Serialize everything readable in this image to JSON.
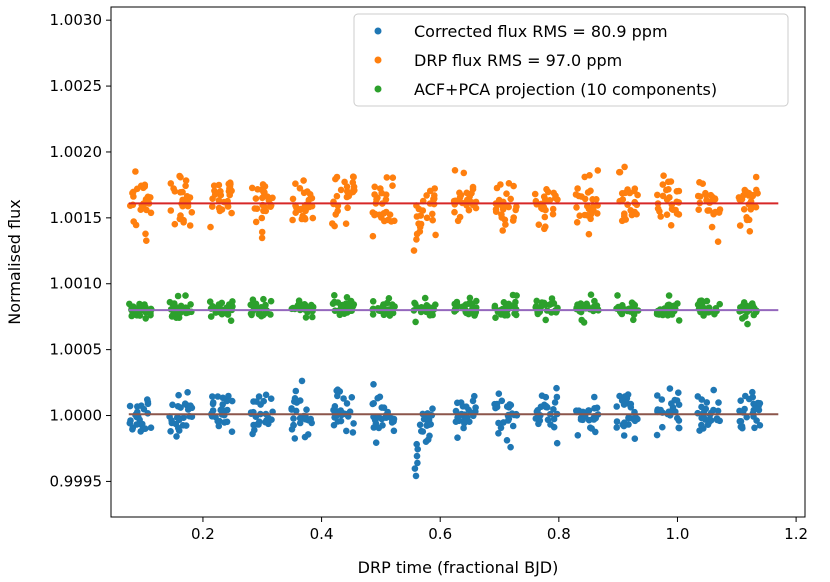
{
  "chart_data": {
    "type": "scatter",
    "title": "",
    "xlabel": "DRP time (fractional BJD)",
    "ylabel": "Normalised flux",
    "xlim": [
      0.045,
      1.215
    ],
    "ylim": [
      0.99923,
      1.0031
    ],
    "xticks": [
      0.2,
      0.4,
      0.6,
      0.8,
      1.0,
      1.2
    ],
    "xtick_labels": [
      "0.2",
      "0.4",
      "0.6",
      "0.8",
      "1.0",
      "1.2"
    ],
    "yticks": [
      0.9995,
      1.0,
      1.0005,
      1.001,
      1.0015,
      1.002,
      1.0025,
      1.003
    ],
    "ytick_labels": [
      "0.9995",
      "1.0000",
      "1.0005",
      "1.0010",
      "1.0015",
      "1.0020",
      "1.0025",
      "1.0030"
    ],
    "grid": false,
    "legend_position": "top-right",
    "time_range": [
      0.075,
      1.17
    ],
    "orbit_period": 0.0685,
    "visit_window": 0.038,
    "series": [
      {
        "name": "Corrected flux RMS =  80.9 ppm",
        "color": "#1f77b4",
        "level": 1.00001,
        "rms": 8.09e-05,
        "transit_depth": 0.00037,
        "transit_center": 0.548,
        "transit_width": 0.018,
        "seed": 11
      },
      {
        "name": "DRP flux RMS =  97.0 ppm",
        "color": "#ff7f0e",
        "level": 1.00161,
        "rms": 9.7e-05,
        "transit_depth": 0.00037,
        "transit_center": 0.548,
        "transit_width": 0.018,
        "seed": 23
      },
      {
        "name": "ACF+PCA projection (10 components)",
        "color": "#2ca02c",
        "level": 1.00081,
        "rms": 3.5e-05,
        "transit_depth": 0,
        "transit_center": 0.548,
        "transit_width": 0.018,
        "seed": 37
      }
    ],
    "fit_lines": [
      {
        "name": "corrected-model",
        "color": "#8c564b",
        "y": 1.00001,
        "x": [
          0.075,
          1.17
        ]
      },
      {
        "name": "drp-model",
        "color": "#d62728",
        "y": 1.00161,
        "x": [
          0.075,
          1.17
        ]
      },
      {
        "name": "projection-model",
        "color": "#9467bd",
        "y": 1.0008,
        "x": [
          0.075,
          1.17
        ]
      }
    ]
  }
}
